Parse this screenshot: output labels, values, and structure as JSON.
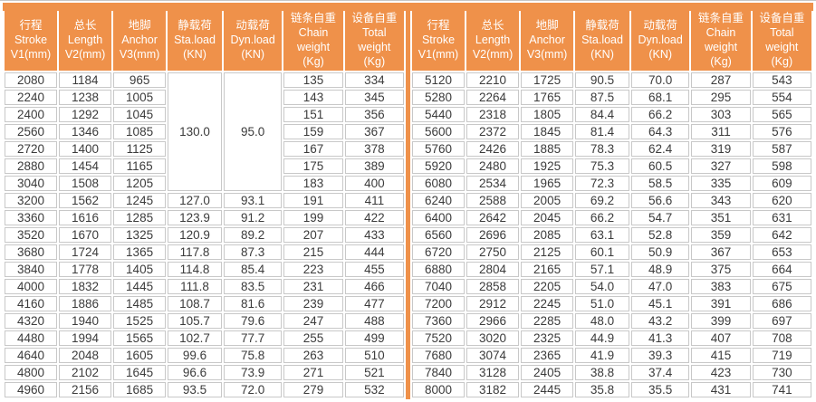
{
  "colors": {
    "header_bg": "#ef914a",
    "accent_bar": "#ef914a",
    "center_divider": "#ef914a",
    "grid_line": "#c8c8c8",
    "data_text": "#3b3b3b",
    "header_text": "#ffffff"
  },
  "headers": [
    "行程\nStroke\nV1(mm)",
    "总长\nLength\nV2(mm)",
    "地脚\nAnchor\nV3(mm)",
    "静载荷\nSta.load\n(KN)",
    "动载荷\nDyn.load\n(KN)",
    "链条自重\nChain\nweight\n(Kg)",
    "设备自重\nTotal\nweight\n(Kg)"
  ],
  "left_table": {
    "merged": {
      "sta_load": "130.0",
      "dyn_load": "95.0",
      "span": 7
    },
    "rows": [
      [
        "2080",
        "1184",
        "965",
        null,
        null,
        "135",
        "334"
      ],
      [
        "2240",
        "1238",
        "1005",
        null,
        null,
        "143",
        "345"
      ],
      [
        "2400",
        "1292",
        "1045",
        null,
        null,
        "151",
        "356"
      ],
      [
        "2560",
        "1346",
        "1085",
        null,
        null,
        "159",
        "367"
      ],
      [
        "2720",
        "1400",
        "1125",
        null,
        null,
        "167",
        "378"
      ],
      [
        "2880",
        "1454",
        "1165",
        null,
        null,
        "175",
        "389"
      ],
      [
        "3040",
        "1508",
        "1205",
        null,
        null,
        "183",
        "400"
      ],
      [
        "3200",
        "1562",
        "1245",
        "127.0",
        "93.1",
        "191",
        "411"
      ],
      [
        "3360",
        "1616",
        "1285",
        "123.9",
        "91.2",
        "199",
        "422"
      ],
      [
        "3520",
        "1670",
        "1325",
        "120.9",
        "89.2",
        "207",
        "433"
      ],
      [
        "3680",
        "1724",
        "1365",
        "117.8",
        "87.3",
        "215",
        "444"
      ],
      [
        "3840",
        "1778",
        "1405",
        "114.8",
        "85.4",
        "223",
        "455"
      ],
      [
        "4000",
        "1832",
        "1445",
        "111.8",
        "83.5",
        "231",
        "466"
      ],
      [
        "4160",
        "1886",
        "1485",
        "108.7",
        "81.6",
        "239",
        "477"
      ],
      [
        "4320",
        "1940",
        "1525",
        "105.7",
        "79.6",
        "247",
        "488"
      ],
      [
        "4480",
        "1994",
        "1565",
        "102.7",
        "77.7",
        "255",
        "499"
      ],
      [
        "4640",
        "2048",
        "1605",
        "99.6",
        "75.8",
        "263",
        "510"
      ],
      [
        "4800",
        "2102",
        "1645",
        "96.6",
        "73.9",
        "271",
        "521"
      ],
      [
        "4960",
        "2156",
        "1685",
        "93.5",
        "72.0",
        "279",
        "532"
      ]
    ]
  },
  "right_table": {
    "rows": [
      [
        "5120",
        "2210",
        "1725",
        "90.5",
        "70.0",
        "287",
        "543"
      ],
      [
        "5280",
        "2264",
        "1765",
        "87.5",
        "68.1",
        "295",
        "554"
      ],
      [
        "5440",
        "2318",
        "1805",
        "84.4",
        "66.2",
        "303",
        "565"
      ],
      [
        "5600",
        "2372",
        "1845",
        "81.4",
        "64.3",
        "311",
        "576"
      ],
      [
        "5760",
        "2426",
        "1885",
        "78.3",
        "62.4",
        "319",
        "587"
      ],
      [
        "5920",
        "2480",
        "1925",
        "75.3",
        "60.5",
        "327",
        "598"
      ],
      [
        "6080",
        "2534",
        "1965",
        "72.3",
        "58.5",
        "335",
        "609"
      ],
      [
        "6240",
        "2588",
        "2005",
        "69.2",
        "56.6",
        "343",
        "620"
      ],
      [
        "6400",
        "2642",
        "2045",
        "66.2",
        "54.7",
        "351",
        "631"
      ],
      [
        "6560",
        "2696",
        "2085",
        "63.1",
        "52.8",
        "359",
        "642"
      ],
      [
        "6720",
        "2750",
        "2125",
        "60.1",
        "50.9",
        "367",
        "653"
      ],
      [
        "6880",
        "2804",
        "2165",
        "57.1",
        "48.9",
        "375",
        "664"
      ],
      [
        "7040",
        "2858",
        "2205",
        "54.0",
        "47.0",
        "383",
        "675"
      ],
      [
        "7200",
        "2912",
        "2245",
        "51.0",
        "45.1",
        "391",
        "686"
      ],
      [
        "7360",
        "2966",
        "2285",
        "48.0",
        "43.2",
        "399",
        "697"
      ],
      [
        "7520",
        "3020",
        "2325",
        "44.9",
        "41.3",
        "407",
        "708"
      ],
      [
        "7680",
        "3074",
        "2365",
        "41.9",
        "39.3",
        "415",
        "719"
      ],
      [
        "7840",
        "3128",
        "2405",
        "38.8",
        "37.4",
        "423",
        "730"
      ],
      [
        "8000",
        "3182",
        "2445",
        "35.8",
        "35.5",
        "431",
        "741"
      ]
    ]
  }
}
